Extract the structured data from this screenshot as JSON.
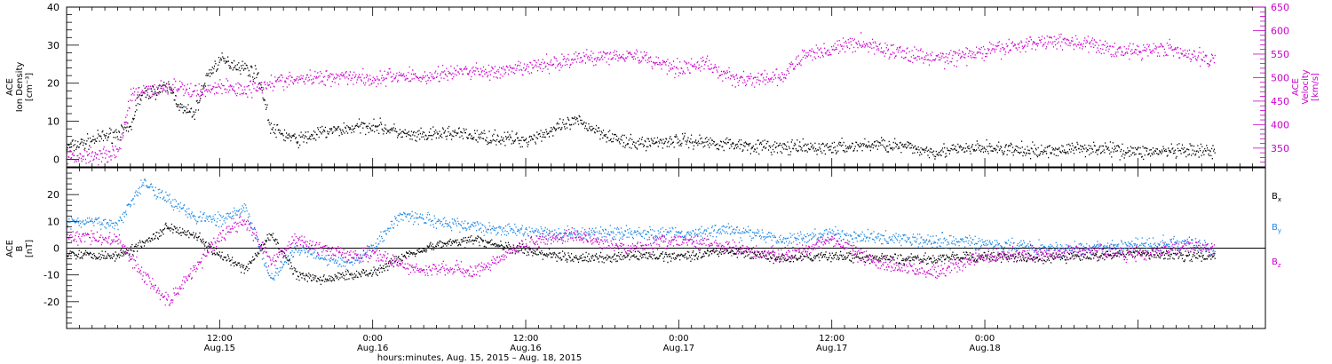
{
  "chart_data": [
    {
      "type": "scatter",
      "panel": "ion-density-velocity",
      "ylabel_left": [
        "ACE",
        "Ion Density",
        "[cm⁻³]"
      ],
      "ylabel_right": [
        "ACE",
        "Velocity",
        "[km/s]"
      ],
      "ylim_left": [
        -2,
        40
      ],
      "ylim_right": [
        310,
        650
      ],
      "yticks_left": [
        0,
        10,
        20,
        30,
        40
      ],
      "yticks_right": [
        350,
        400,
        450,
        500,
        550,
        600,
        650
      ],
      "colors": {
        "density": "#000000",
        "velocity": "#cc00cc"
      },
      "series": [
        {
          "axis": "left",
          "color": "#000000",
          "x": [
            0,
            1,
            2,
            3,
            4,
            5,
            5.5,
            6,
            7,
            8,
            9,
            10,
            11,
            12,
            13,
            14,
            15,
            16,
            18,
            20,
            22,
            24,
            25,
            26,
            27,
            28,
            30,
            32,
            36,
            40,
            44,
            48,
            52,
            56,
            60,
            64,
            68,
            72,
            76,
            80,
            84,
            88,
            90
          ],
          "y": [
            3,
            4,
            5,
            6,
            7,
            8,
            15,
            17,
            18,
            19,
            13,
            12,
            22,
            26,
            25,
            24,
            22,
            8,
            5,
            7,
            8,
            9,
            8,
            7,
            6,
            6,
            7,
            6,
            5,
            10,
            4,
            5,
            4,
            3,
            3,
            4,
            2,
            3,
            2,
            3,
            2,
            2,
            2
          ]
        },
        {
          "axis": "right",
          "color": "#cc00cc",
          "x": [
            0,
            2,
            4,
            5,
            6,
            8,
            10,
            12,
            14,
            16,
            18,
            20,
            22,
            24,
            26,
            28,
            30,
            32,
            34,
            36,
            38,
            40,
            42,
            44,
            46,
            48,
            50,
            52,
            54,
            56,
            58,
            60,
            62,
            64,
            66,
            68,
            70,
            72,
            74,
            76,
            78,
            80,
            82,
            84,
            86,
            88,
            90
          ],
          "y": [
            330,
            335,
            340,
            460,
            470,
            480,
            470,
            480,
            475,
            490,
            495,
            500,
            505,
            495,
            505,
            500,
            510,
            515,
            510,
            520,
            530,
            540,
            545,
            550,
            535,
            520,
            530,
            500,
            495,
            500,
            550,
            560,
            575,
            560,
            550,
            540,
            545,
            555,
            565,
            575,
            580,
            570,
            560,
            555,
            565,
            545,
            540
          ]
        }
      ]
    },
    {
      "type": "scatter",
      "panel": "magnetic-field",
      "ylabel_left": [
        "ACE",
        "B",
        "[nT]"
      ],
      "ylim_left": [
        -30,
        30
      ],
      "yticks_left": [
        -20,
        -10,
        0,
        10,
        20
      ],
      "zero_line": true,
      "legend_position": "right",
      "series": [
        {
          "name": "B_x",
          "label_main": "B",
          "label_sub": "x",
          "color": "#000000",
          "x": [
            0,
            4,
            6,
            8,
            10,
            12,
            14,
            16,
            18,
            20,
            22,
            24,
            26,
            28,
            30,
            32,
            36,
            40,
            44,
            48,
            52,
            56,
            60,
            64,
            68,
            72,
            76,
            80,
            84,
            88,
            90
          ],
          "y": [
            -2,
            -3,
            2,
            8,
            5,
            -3,
            -8,
            5,
            -10,
            -12,
            -10,
            -9,
            -4,
            0,
            2,
            3,
            -1,
            -4,
            -3,
            -3,
            -1,
            -4,
            -3,
            -4,
            -4,
            -3,
            -4,
            -3,
            -2,
            -3,
            -3
          ]
        },
        {
          "name": "B_y",
          "label_main": "B",
          "label_sub": "y",
          "color": "#1e88e5",
          "x": [
            0,
            4,
            6,
            8,
            10,
            12,
            14,
            16,
            18,
            20,
            22,
            24,
            26,
            28,
            30,
            32,
            36,
            40,
            44,
            48,
            52,
            56,
            60,
            64,
            68,
            72,
            76,
            80,
            84,
            88,
            90
          ],
          "y": [
            10,
            9,
            25,
            18,
            12,
            10,
            15,
            -12,
            0,
            -3,
            -6,
            0,
            12,
            11,
            9,
            8,
            6,
            5,
            6,
            5,
            7,
            3,
            5,
            4,
            3,
            2,
            0,
            0,
            1,
            2,
            -1
          ]
        },
        {
          "name": "B_z",
          "label_main": "B",
          "label_sub": "z",
          "color": "#cc00cc",
          "x": [
            0,
            4,
            6,
            8,
            10,
            12,
            14,
            16,
            18,
            20,
            22,
            24,
            26,
            28,
            30,
            32,
            36,
            40,
            44,
            48,
            52,
            56,
            60,
            64,
            68,
            72,
            76,
            80,
            84,
            88,
            90
          ],
          "y": [
            5,
            3,
            -10,
            -20,
            -8,
            5,
            10,
            -5,
            3,
            0,
            -3,
            -2,
            -6,
            -9,
            -7,
            -9,
            2,
            5,
            0,
            3,
            0,
            -3,
            3,
            -6,
            -9,
            -3,
            -2,
            -1,
            -2,
            1,
            -1
          ]
        }
      ]
    }
  ],
  "x_axis": {
    "title": "hours:minutes, Aug. 15, 2015 – Aug. 18, 2015",
    "xlim_hours": [
      0,
      94
    ],
    "ticks": [
      {
        "t": 12,
        "time": "12:00",
        "date": "Aug.15"
      },
      {
        "t": 24,
        "time": "0:00",
        "date": "Aug.16"
      },
      {
        "t": 36,
        "time": "12:00",
        "date": "Aug.16"
      },
      {
        "t": 48,
        "time": "0:00",
        "date": "Aug.17"
      },
      {
        "t": 60,
        "time": "12:00",
        "date": "Aug.17"
      },
      {
        "t": 72,
        "time": "0:00",
        "date": "Aug.18"
      }
    ]
  }
}
